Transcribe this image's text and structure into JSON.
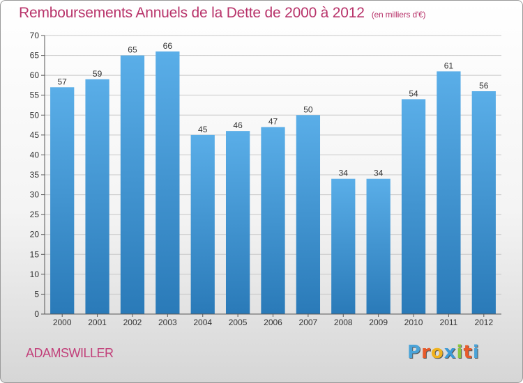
{
  "chart_data": {
    "type": "bar",
    "title": "Remboursements Annuels de la Dette de 2000 à 2012",
    "subtitle": "(en milliers d'€)",
    "categories": [
      "2000",
      "2001",
      "2002",
      "2003",
      "2004",
      "2005",
      "2006",
      "2007",
      "2008",
      "2009",
      "2010",
      "2011",
      "2012"
    ],
    "values": [
      57,
      59,
      65,
      66,
      45,
      46,
      47,
      50,
      34,
      34,
      54,
      61,
      56
    ],
    "ylim": [
      0,
      70
    ],
    "yticks": [
      0,
      5,
      10,
      15,
      20,
      25,
      30,
      35,
      40,
      45,
      50,
      55,
      60,
      65,
      70
    ],
    "grid": true,
    "colors": {
      "bar_top": "#5aaee8",
      "bar_bottom": "#2a7ab8",
      "grid": "#c8c8c8",
      "title": "#b8336a"
    }
  },
  "commune": "ADAMSWILLER",
  "brand": {
    "letters": [
      "P",
      "r",
      "o",
      "x",
      "i",
      "t",
      "i"
    ],
    "letter_colors": [
      "#4aa3d8",
      "#e85a2a",
      "#f0b21e",
      "#3d9ad6",
      "#8cc63f",
      "#e85a2a",
      "#4aa3d8"
    ]
  }
}
